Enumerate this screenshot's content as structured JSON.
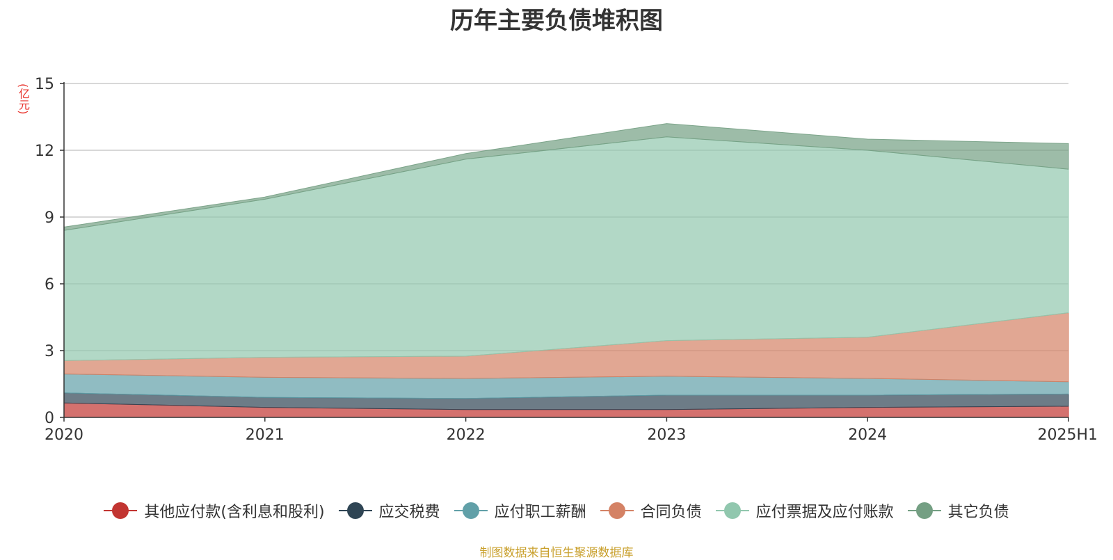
{
  "chart_data": {
    "type": "area",
    "stacked": true,
    "title": "历年主要负债堆积图",
    "unit_label": "(亿元)",
    "categories": [
      "2020",
      "2021",
      "2022",
      "2023",
      "2024",
      "2025H1"
    ],
    "ylim": [
      0,
      15
    ],
    "yticks": [
      0,
      3,
      6,
      9,
      12,
      15
    ],
    "grid": true,
    "legend_position": "bottom",
    "series": [
      {
        "name": "其他应付款(含利息和股利)",
        "color": "#c23531",
        "values": [
          0.65,
          0.45,
          0.35,
          0.35,
          0.45,
          0.5
        ]
      },
      {
        "name": "应交税费",
        "color": "#2f4554",
        "values": [
          0.45,
          0.45,
          0.5,
          0.65,
          0.55,
          0.55
        ]
      },
      {
        "name": "应付职工薪酬",
        "color": "#61a0a8",
        "values": [
          0.85,
          0.9,
          0.9,
          0.85,
          0.75,
          0.55
        ]
      },
      {
        "name": "合同负债",
        "color": "#d48265",
        "values": [
          0.6,
          0.9,
          1.0,
          1.6,
          1.85,
          3.1
        ]
      },
      {
        "name": "应付票据及应付账款",
        "color": "#91c7ae",
        "values": [
          5.85,
          7.1,
          8.85,
          9.15,
          8.4,
          6.45
        ]
      },
      {
        "name": "其它负债",
        "color": "#749f83",
        "values": [
          0.15,
          0.1,
          0.25,
          0.6,
          0.5,
          1.15
        ]
      }
    ]
  },
  "source_note": "制图数据来自恒生聚源数据库"
}
